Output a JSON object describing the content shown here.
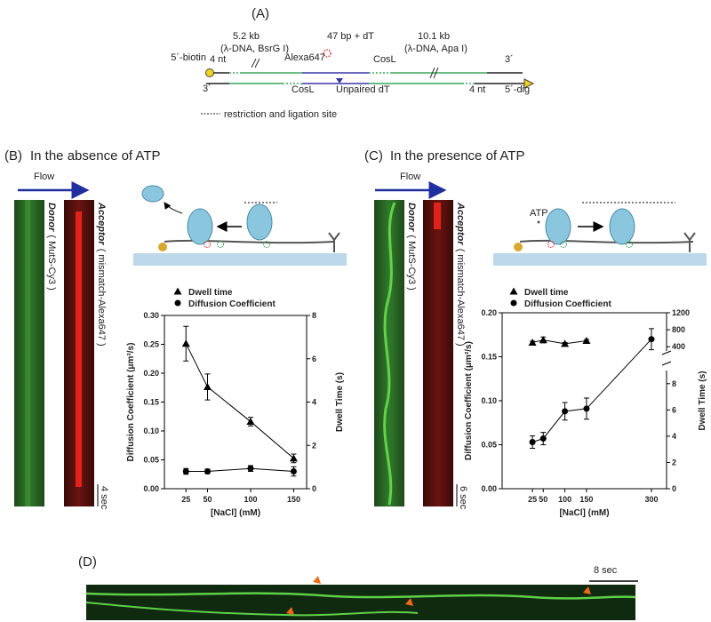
{
  "panel_a": {
    "label": "(A)",
    "left_size": "5.2 kb",
    "left_source": "(λ-DNA, BsrG I)",
    "insert": "47 bp + dT",
    "right_size": "10.1 kb",
    "right_source": "(λ-DNA, Apa I)",
    "biotin": "5´-biotin",
    "left_overhang": "4 nt",
    "dye": "Alexa647",
    "top_cos": "CosL",
    "top_right_end": "3´",
    "bottom_left_end": "3´",
    "bottom_cos": "CosL",
    "mismatch": "Unpaired dT",
    "right_overhang": "4 nt",
    "dig": "5´-dig",
    "legend": "restriction and ligation site"
  },
  "panel_b": {
    "label": "(B)",
    "title": "In the absence of ATP",
    "flow": "Flow",
    "donor": "Donor",
    "donor_dye": "( MutS-Cy3 )",
    "acceptor": "Acceptor",
    "acceptor_dye": "( mismatch-Alexa647 )",
    "scale": "4 sec"
  },
  "panel_c": {
    "label": "(C)",
    "title": "In the presence of ATP",
    "flow": "Flow",
    "donor": "Donor",
    "donor_dye": "( MutS-Cy3 )",
    "acceptor": "Acceptor",
    "acceptor_dye": "( mismatch-Alexa647 )",
    "scale": "6 sec",
    "atp": "ATP"
  },
  "panel_d": {
    "label": "(D)",
    "scale": "8 sec"
  },
  "chart_data": [
    {
      "type": "line",
      "x": [
        25,
        50,
        100,
        150
      ],
      "xlim": [
        0,
        165
      ],
      "xticks": [
        25,
        50,
        100,
        150
      ],
      "ylim": [
        0,
        0.3
      ],
      "yticks": [
        {
          "value": 0,
          "label": "0.00"
        },
        0.05,
        {
          "value": 0.1,
          "label": "0.10"
        },
        0.15,
        {
          "value": 0.2,
          "label": "0.20"
        },
        0.25,
        {
          "value": 0.3,
          "label": "0.30"
        }
      ],
      "y2lim": [
        0,
        8
      ],
      "y2ticks": [
        0,
        2,
        4,
        6,
        8
      ],
      "xlabel": "[NaCl] (mM)",
      "ylabel": "Diffusion Coefficient (μm²/s)",
      "y2label": "Dwell Time (s)",
      "legend": "top-left",
      "series": [
        {
          "name": "Dwell time",
          "marker": "triangle",
          "color": "#000000",
          "axis": "y2",
          "values": [
            6.7,
            4.7,
            3.1,
            1.4
          ],
          "errors": [
            0.8,
            0.6,
            0.2,
            0.2
          ]
        },
        {
          "name": "Diffusion Coefficient",
          "marker": "circle",
          "color": "#000000",
          "values": [
            0.03,
            0.03,
            0.035,
            0.03
          ],
          "errors": [
            0.005,
            0.004,
            0.005,
            0.008
          ]
        }
      ]
    },
    {
      "type": "line",
      "x": [
        25,
        50,
        100,
        150,
        300
      ],
      "xlim": [
        -45,
        335
      ],
      "xticks": [
        25,
        50,
        100,
        150,
        300
      ],
      "ylim": [
        0,
        0.2
      ],
      "yticks": [
        {
          "value": 0,
          "label": "0.00"
        },
        0.05,
        {
          "value": 0.1,
          "label": "0.10"
        },
        0.15,
        {
          "value": 0.2,
          "label": "0.20"
        }
      ],
      "y2_segments": [
        {
          "lim": [
            0,
            9
          ],
          "ticks": [
            0,
            2,
            4,
            6,
            8
          ]
        },
        {
          "lim": [
            300,
            1200
          ],
          "ticks": [
            400,
            800,
            1200
          ]
        }
      ],
      "xlabel": "[NaCl] (mM)",
      "ylabel": "Diffusion Coefficient (μm²/s)",
      "y2label": "Dwell Time (s)",
      "legend": "top-left",
      "series": [
        {
          "name": "Dwell time",
          "marker": "triangle",
          "color": "#000000",
          "axis": "y2",
          "values": [
            500,
            560,
            470,
            540,
            null
          ],
          "errors": [
            30,
            70,
            30,
            30,
            null
          ]
        },
        {
          "name": "Diffusion Coefficient",
          "marker": "circle",
          "color": "#000000",
          "values": [
            0.053,
            0.057,
            0.088,
            0.091,
            0.17
          ],
          "errors": [
            0.007,
            0.007,
            0.01,
            0.012,
            0.012
          ]
        }
      ]
    }
  ]
}
